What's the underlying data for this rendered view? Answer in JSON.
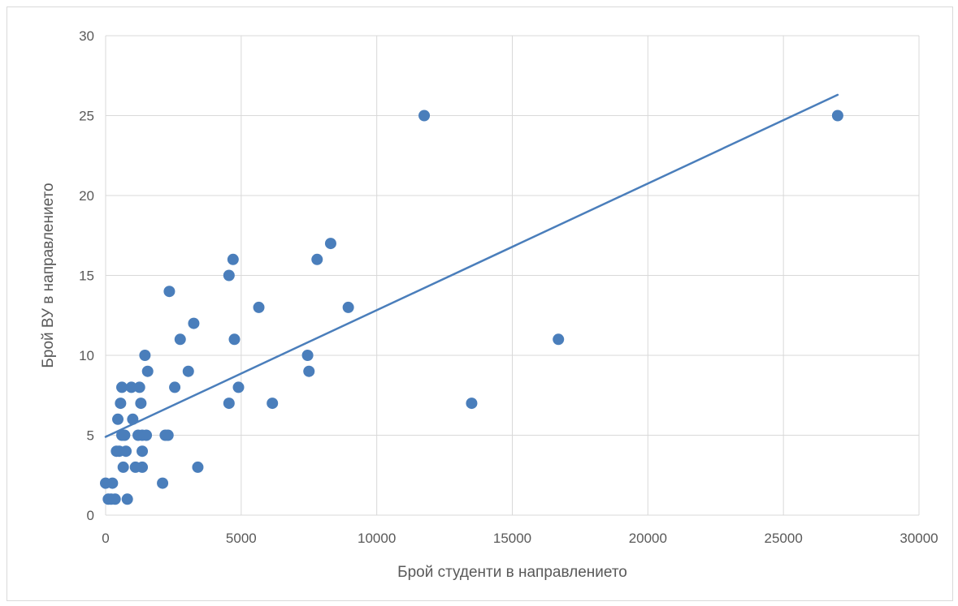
{
  "chart_data": {
    "type": "scatter",
    "title": "",
    "xlabel": "Брой студенти в направлението",
    "ylabel": "Брой ВУ в направлението",
    "xlim": [
      0,
      30000
    ],
    "ylim": [
      0,
      30
    ],
    "xticks": [
      "0",
      "5000",
      "10000",
      "15000",
      "20000",
      "25000",
      "30000"
    ],
    "yticks": [
      "0",
      "5",
      "10",
      "15",
      "20",
      "25",
      "30"
    ],
    "grid": true,
    "legend": "none",
    "point_color": "#4a7ebb",
    "trendline": {
      "type": "linear",
      "x": [
        0,
        27000
      ],
      "y": [
        4.9,
        26.3
      ],
      "color": "#4a7ebb"
    },
    "points": [
      {
        "x": 0,
        "y": 2
      },
      {
        "x": 100,
        "y": 1
      },
      {
        "x": 200,
        "y": 1
      },
      {
        "x": 250,
        "y": 2
      },
      {
        "x": 350,
        "y": 1
      },
      {
        "x": 400,
        "y": 4
      },
      {
        "x": 450,
        "y": 6
      },
      {
        "x": 500,
        "y": 4
      },
      {
        "x": 550,
        "y": 7
      },
      {
        "x": 600,
        "y": 8
      },
      {
        "x": 600,
        "y": 5
      },
      {
        "x": 650,
        "y": 3
      },
      {
        "x": 700,
        "y": 5
      },
      {
        "x": 750,
        "y": 4
      },
      {
        "x": 800,
        "y": 1
      },
      {
        "x": 950,
        "y": 8
      },
      {
        "x": 1000,
        "y": 6
      },
      {
        "x": 1100,
        "y": 3
      },
      {
        "x": 1200,
        "y": 5
      },
      {
        "x": 1250,
        "y": 8
      },
      {
        "x": 1300,
        "y": 7
      },
      {
        "x": 1350,
        "y": 5
      },
      {
        "x": 1350,
        "y": 3
      },
      {
        "x": 1350,
        "y": 4
      },
      {
        "x": 1450,
        "y": 10
      },
      {
        "x": 1500,
        "y": 5
      },
      {
        "x": 1550,
        "y": 9
      },
      {
        "x": 2100,
        "y": 2
      },
      {
        "x": 2200,
        "y": 5
      },
      {
        "x": 2300,
        "y": 5
      },
      {
        "x": 2350,
        "y": 14
      },
      {
        "x": 2550,
        "y": 8
      },
      {
        "x": 2750,
        "y": 11
      },
      {
        "x": 3050,
        "y": 9
      },
      {
        "x": 3250,
        "y": 12
      },
      {
        "x": 3400,
        "y": 3
      },
      {
        "x": 4550,
        "y": 15
      },
      {
        "x": 4550,
        "y": 7
      },
      {
        "x": 4700,
        "y": 16
      },
      {
        "x": 4750,
        "y": 11
      },
      {
        "x": 4900,
        "y": 8
      },
      {
        "x": 5650,
        "y": 13
      },
      {
        "x": 6150,
        "y": 7
      },
      {
        "x": 7450,
        "y": 10
      },
      {
        "x": 7500,
        "y": 9
      },
      {
        "x": 7800,
        "y": 16
      },
      {
        "x": 8300,
        "y": 17
      },
      {
        "x": 8950,
        "y": 13
      },
      {
        "x": 11750,
        "y": 25
      },
      {
        "x": 13500,
        "y": 7
      },
      {
        "x": 16700,
        "y": 11
      },
      {
        "x": 27000,
        "y": 25
      }
    ]
  }
}
